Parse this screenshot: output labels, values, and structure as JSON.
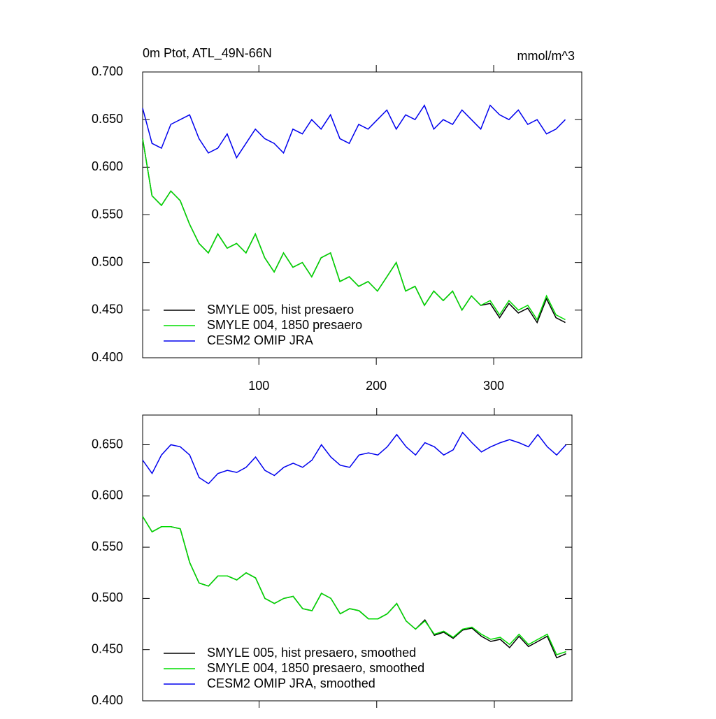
{
  "chart_data": [
    {
      "type": "line",
      "title": "0m Ptot, ATL_49N-66N",
      "subtitle": "mmol/m^3",
      "x": [
        1,
        9,
        17,
        25,
        33,
        41,
        49,
        57,
        65,
        73,
        81,
        89,
        97,
        105,
        113,
        121,
        129,
        137,
        145,
        153,
        161,
        169,
        177,
        185,
        193,
        201,
        209,
        217,
        225,
        233,
        241,
        249,
        257,
        265,
        273,
        281,
        289,
        297,
        305,
        313,
        321,
        329,
        337,
        345,
        353,
        361
      ],
      "xlim": [
        1,
        375
      ],
      "ylim": [
        0.4,
        0.7
      ],
      "xticks": [
        100,
        200,
        300
      ],
      "xtick_labels": true,
      "yticks": [
        {
          "value": 0.4,
          "label": "0.400"
        },
        {
          "value": 0.45,
          "label": "0.450"
        },
        {
          "value": 0.5,
          "label": "0.500"
        },
        {
          "value": 0.55,
          "label": "0.550"
        },
        {
          "value": 0.6,
          "label": "0.600"
        },
        {
          "value": 0.65,
          "label": "0.650"
        },
        {
          "value": 0.7,
          "label": "0.700"
        }
      ],
      "series": [
        {
          "name": "SMYLE 005, hist presaero",
          "color": "#000000",
          "values": [
            0.63,
            0.57,
            0.56,
            0.575,
            0.565,
            0.54,
            0.52,
            0.51,
            0.53,
            0.515,
            0.52,
            0.51,
            0.53,
            0.505,
            0.49,
            0.51,
            0.495,
            0.5,
            0.485,
            0.505,
            0.51,
            0.48,
            0.485,
            0.475,
            0.48,
            0.47,
            0.485,
            0.5,
            0.47,
            0.475,
            0.455,
            0.47,
            0.46,
            0.47,
            0.45,
            0.465,
            0.455,
            0.457,
            0.442,
            0.457,
            0.447,
            0.452,
            0.437,
            0.462,
            0.442,
            0.437
          ]
        },
        {
          "name": "SMYLE 004, 1850 presaero",
          "color": "#00dd00",
          "values": [
            0.63,
            0.57,
            0.56,
            0.575,
            0.565,
            0.54,
            0.52,
            0.51,
            0.53,
            0.515,
            0.52,
            0.51,
            0.53,
            0.505,
            0.49,
            0.51,
            0.495,
            0.5,
            0.485,
            0.505,
            0.51,
            0.48,
            0.485,
            0.475,
            0.48,
            0.47,
            0.485,
            0.5,
            0.47,
            0.475,
            0.455,
            0.47,
            0.46,
            0.47,
            0.45,
            0.465,
            0.455,
            0.46,
            0.445,
            0.46,
            0.45,
            0.455,
            0.44,
            0.465,
            0.445,
            0.44
          ]
        },
        {
          "name": "CESM2 OMIP JRA",
          "color": "#0000ee",
          "values": [
            0.662,
            0.625,
            0.62,
            0.645,
            0.65,
            0.655,
            0.63,
            0.615,
            0.62,
            0.635,
            0.61,
            0.625,
            0.64,
            0.63,
            0.625,
            0.615,
            0.64,
            0.635,
            0.65,
            0.64,
            0.655,
            0.63,
            0.625,
            0.645,
            0.64,
            0.65,
            0.66,
            0.64,
            0.655,
            0.65,
            0.665,
            0.64,
            0.65,
            0.645,
            0.66,
            0.65,
            0.64,
            0.665,
            0.655,
            0.65,
            0.66,
            0.645,
            0.65,
            0.635,
            0.64,
            0.65
          ]
        }
      ]
    },
    {
      "type": "line",
      "x": [
        1,
        9,
        17,
        25,
        33,
        41,
        49,
        57,
        65,
        73,
        81,
        89,
        97,
        105,
        113,
        121,
        129,
        137,
        145,
        153,
        161,
        169,
        177,
        185,
        193,
        201,
        209,
        217,
        225,
        233,
        241,
        249,
        257,
        265,
        273,
        281,
        289,
        297,
        305,
        313,
        321,
        329,
        337,
        345,
        353,
        361
      ],
      "xlim": [
        1,
        366
      ],
      "ylim": [
        0.4,
        0.679
      ],
      "xticks": [
        100,
        200,
        300
      ],
      "xtick_labels": false,
      "yticks": [
        {
          "value": 0.4,
          "label": "0.400"
        },
        {
          "value": 0.45,
          "label": "0.450"
        },
        {
          "value": 0.5,
          "label": "0.500"
        },
        {
          "value": 0.55,
          "label": "0.550"
        },
        {
          "value": 0.6,
          "label": "0.600"
        },
        {
          "value": 0.65,
          "label": "0.650"
        }
      ],
      "series": [
        {
          "name": "SMYLE 005, hist presaero, smoothed",
          "color": "#000000",
          "values": [
            0.58,
            0.565,
            0.57,
            0.57,
            0.568,
            0.535,
            0.515,
            0.512,
            0.522,
            0.522,
            0.518,
            0.525,
            0.52,
            0.5,
            0.495,
            0.5,
            0.502,
            0.49,
            0.488,
            0.505,
            0.5,
            0.485,
            0.49,
            0.488,
            0.48,
            0.48,
            0.485,
            0.495,
            0.478,
            0.47,
            0.479,
            0.464,
            0.467,
            0.461,
            0.469,
            0.471,
            0.463,
            0.458,
            0.46,
            0.452,
            0.463,
            0.453,
            0.458,
            0.463,
            0.442,
            0.446
          ]
        },
        {
          "name": "SMYLE 004, 1850 presaero, smoothed",
          "color": "#00dd00",
          "values": [
            0.58,
            0.565,
            0.57,
            0.57,
            0.568,
            0.535,
            0.515,
            0.512,
            0.522,
            0.522,
            0.518,
            0.525,
            0.52,
            0.5,
            0.495,
            0.5,
            0.502,
            0.49,
            0.488,
            0.505,
            0.5,
            0.485,
            0.49,
            0.488,
            0.48,
            0.48,
            0.485,
            0.495,
            0.478,
            0.47,
            0.478,
            0.465,
            0.468,
            0.462,
            0.47,
            0.472,
            0.465,
            0.46,
            0.462,
            0.455,
            0.465,
            0.455,
            0.46,
            0.465,
            0.445,
            0.448
          ]
        },
        {
          "name": "CESM2 OMIP JRA, smoothed",
          "color": "#0000ee",
          "values": [
            0.635,
            0.622,
            0.64,
            0.65,
            0.648,
            0.64,
            0.618,
            0.612,
            0.622,
            0.625,
            0.623,
            0.628,
            0.638,
            0.625,
            0.62,
            0.628,
            0.632,
            0.628,
            0.635,
            0.65,
            0.638,
            0.63,
            0.628,
            0.64,
            0.642,
            0.64,
            0.648,
            0.66,
            0.648,
            0.64,
            0.652,
            0.648,
            0.64,
            0.645,
            0.662,
            0.652,
            0.643,
            0.648,
            0.652,
            0.655,
            0.652,
            0.648,
            0.66,
            0.648,
            0.64,
            0.65
          ]
        }
      ]
    }
  ]
}
